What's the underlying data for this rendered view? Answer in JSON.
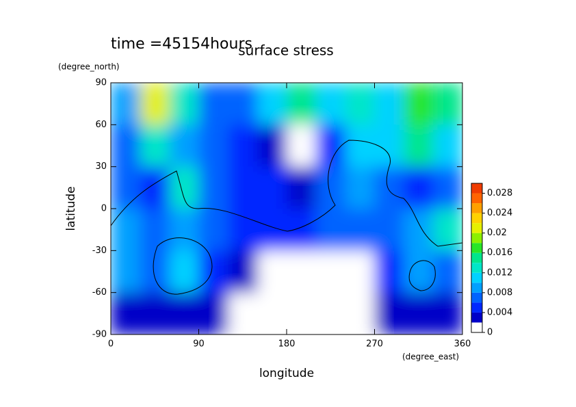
{
  "chart_data": {
    "type": "contour",
    "title": "surface stress",
    "subtitle": "time =45154hours",
    "x_label": "longitude",
    "x_unit": "(degree_east)",
    "y_label": "latitude",
    "y_unit": "(degree_north)",
    "x": [
      15,
      45,
      75,
      105,
      135,
      165,
      195,
      225,
      255,
      285,
      315,
      345
    ],
    "y": [
      75,
      45,
      15,
      -15,
      -45,
      -75
    ],
    "z": [
      [
        0.008,
        0.02,
        0.012,
        0.006,
        0.006,
        0.01,
        0.014,
        0.01,
        0.012,
        0.01,
        0.016,
        0.014
      ],
      [
        0.006,
        0.012,
        0.008,
        0.006,
        0.004,
        0.002,
        0,
        0.004,
        0.01,
        0.01,
        0.014,
        0.01
      ],
      [
        0.006,
        0.004,
        0.012,
        0.006,
        0.004,
        0.004,
        0.002,
        0.006,
        0.008,
        0.006,
        0.004,
        0.006
      ],
      [
        0.008,
        0.006,
        0.008,
        0.006,
        0.004,
        0.004,
        0.004,
        0.006,
        0.006,
        0.006,
        0.008,
        0.012
      ],
      [
        0.008,
        0.006,
        0.01,
        0.004,
        0.002,
        0,
        0,
        0,
        0,
        0.004,
        0.008,
        0.006
      ],
      [
        0.002,
        0.002,
        0.002,
        0.002,
        0.001,
        0,
        0,
        0,
        0,
        0.002,
        0.002,
        0.002
      ]
    ],
    "xlim": [
      0,
      360
    ],
    "xticks": [
      0,
      90,
      180,
      270,
      360
    ],
    "ylim": [
      -90,
      90
    ],
    "yticks": [
      -90,
      -60,
      -30,
      0,
      30,
      60,
      90
    ],
    "levels": [
      0,
      0.002,
      0.004,
      0.006,
      0.008,
      0.01,
      0.012,
      0.014,
      0.016,
      0.018,
      0.02,
      0.022,
      0.024,
      0.026,
      0.028,
      0.03
    ],
    "colors": [
      "#ffffff",
      "#0000c8",
      "#0028ff",
      "#0064ff",
      "#00a0ff",
      "#00d2ff",
      "#00e6c8",
      "#00e68c",
      "#28e628",
      "#8cf000",
      "#e6f000",
      "#ffd200",
      "#ffa000",
      "#ff6400",
      "#f03c00"
    ],
    "colorbar_lim": [
      0,
      0.03
    ],
    "colorbar_ticks": [
      0,
      0.004,
      0.008,
      0.012,
      0.016,
      0.02,
      0.024,
      0.028
    ]
  }
}
